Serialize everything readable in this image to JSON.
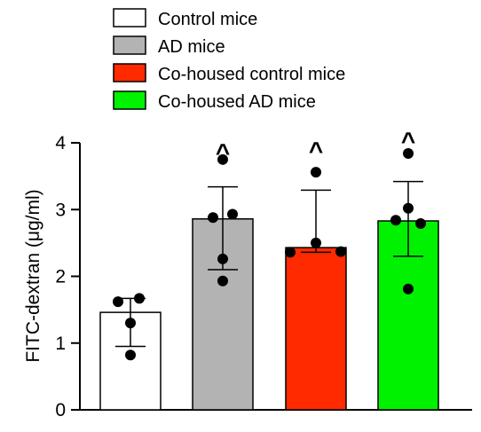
{
  "chart_data": {
    "type": "bar",
    "categories": [
      "Control mice",
      "AD mice",
      "Co-housed control mice",
      "Co-housed AD mice"
    ],
    "colors": [
      "#ffffff",
      "#b3b3b4",
      "#ff2a00",
      "#00f200"
    ],
    "values": [
      1.46,
      2.86,
      2.43,
      2.83
    ],
    "error_upper": [
      1.67,
      3.34,
      3.29,
      3.42
    ],
    "error_lower": [
      0.95,
      2.1,
      2.36,
      2.3
    ],
    "points": [
      [
        1.62,
        1.67,
        1.3,
        0.82
      ],
      [
        3.75,
        2.93,
        2.88,
        2.26,
        1.93
      ],
      [
        3.56,
        2.5,
        2.36,
        2.37
      ],
      [
        3.84,
        3.02,
        2.84,
        2.79,
        1.81
      ]
    ],
    "significance": [
      "",
      "^",
      "^",
      "^"
    ],
    "ylabel": "FITC-dextran (μg/ml)",
    "ylim": [
      0,
      4
    ],
    "yticks": [
      "0",
      "1",
      "2",
      "3",
      "4"
    ],
    "legend": [
      "Control mice",
      "AD mice",
      "Co-housed control mice",
      "Co-housed AD mice"
    ],
    "legend_position": "top"
  }
}
